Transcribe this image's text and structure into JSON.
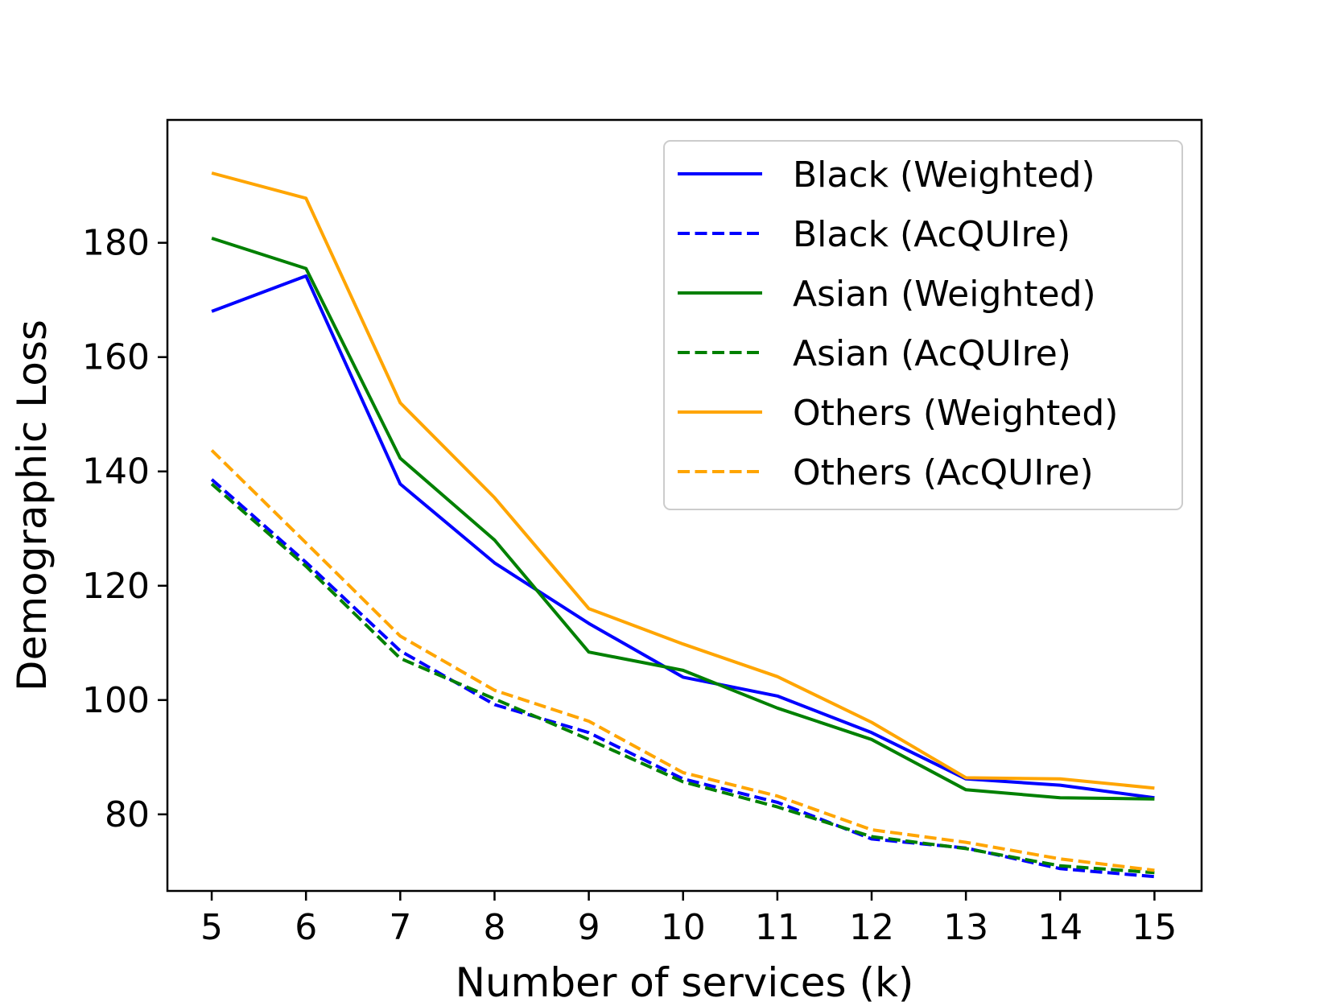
{
  "chart_data": {
    "type": "line",
    "title": "",
    "xlabel": "Number of services (k)",
    "ylabel": "Demographic Loss",
    "x": [
      5,
      6,
      7,
      8,
      9,
      10,
      11,
      12,
      13,
      14,
      15
    ],
    "xticks": [
      "5",
      "6",
      "7",
      "8",
      "9",
      "10",
      "11",
      "12",
      "13",
      "14",
      "15"
    ],
    "yticks": [
      "80",
      "100",
      "120",
      "140",
      "160",
      "180"
    ],
    "xlim": [
      4.53,
      15.5
    ],
    "ylim": [
      66.6,
      201.5
    ],
    "grid": false,
    "legend_position": "top-right",
    "series": [
      {
        "name": "Black (Weighted)",
        "color": "#0000ff",
        "style": "solid",
        "values": [
          168,
          174.2,
          137.8,
          124,
          113.4,
          104,
          100.7,
          94.3,
          86.2,
          85.1,
          82.9
        ]
      },
      {
        "name": "Black (AcQUIre)",
        "color": "#0000ff",
        "style": "dashed",
        "values": [
          138.6,
          124.1,
          108.6,
          99.2,
          94.3,
          86.2,
          82.1,
          75.7,
          74.1,
          70.5,
          69.1
        ]
      },
      {
        "name": "Asian (Weighted)",
        "color": "#008000",
        "style": "solid",
        "values": [
          180.8,
          175.5,
          142.3,
          128,
          108.4,
          105.2,
          98.6,
          93.1,
          84.3,
          82.9,
          82.7
        ]
      },
      {
        "name": "Asian (AcQUIre)",
        "color": "#008000",
        "style": "dashed",
        "values": [
          137.8,
          123.4,
          107.3,
          100.2,
          93.1,
          85.7,
          81.3,
          76.1,
          74.0,
          71.0,
          69.8
        ]
      },
      {
        "name": "Others (Weighted)",
        "color": "#ffa500",
        "style": "solid",
        "values": [
          192.2,
          187.8,
          152,
          135.4,
          116,
          109.8,
          104.1,
          96.1,
          86.4,
          86.2,
          84.6
        ]
      },
      {
        "name": "Others (AcQUIre)",
        "color": "#ffa500",
        "style": "dashed",
        "values": [
          143.7,
          127.5,
          111.2,
          101.7,
          96.3,
          87.3,
          83.2,
          77.3,
          75.1,
          72.2,
          70.2
        ]
      }
    ]
  }
}
